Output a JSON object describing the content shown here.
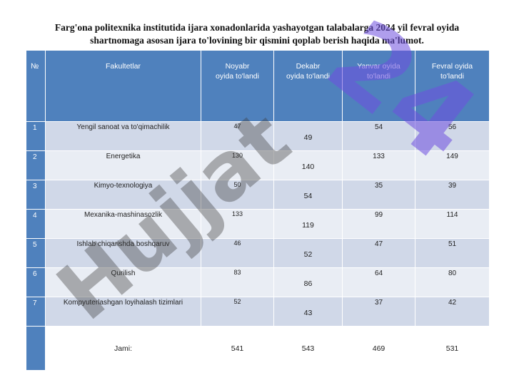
{
  "title": "Farg'ona politexnika institutida ijara xonadonlarida yashayotgan talabalarga 2024 yil fevral oyida shartnomaga asosan ijara to'lovining bir qismini qoplab berish haqida ma'lumot.",
  "headers": {
    "num": "№",
    "faculty": "Fakultetlar",
    "nov_1": "Noyabr",
    "nov_2": "oyida to'landi",
    "dek_1": "Dekabr",
    "dek_2": "oyida to'landi",
    "yan_1": "Yanvar oyida",
    "yan_2": "to'landi",
    "fev_1": "Fevral oyida",
    "fev_2": "to'landi"
  },
  "rows": [
    {
      "n": "1",
      "faculty": "Yengil sanoat va to'qimachilik",
      "nov": "47",
      "dek": "49",
      "yan": "54",
      "fev": "56"
    },
    {
      "n": "2",
      "faculty": "Energetika",
      "nov": "130",
      "dek": "140",
      "yan": "133",
      "fev": "149"
    },
    {
      "n": "3",
      "faculty": "Kimyo-texnologiya",
      "nov": "50",
      "dek": "54",
      "yan": "35",
      "fev": "39"
    },
    {
      "n": "4",
      "faculty": "Mexanika-mashinasozlik",
      "nov": "133",
      "dek": "119",
      "yan": "99",
      "fev": "114"
    },
    {
      "n": "5",
      "faculty": "Ishlab chiqarishda boshqaruv",
      "nov": "46",
      "dek": "52",
      "yan": "47",
      "fev": "51"
    },
    {
      "n": "6",
      "faculty": "Qurilish",
      "nov": "83",
      "dek": "86",
      "yan": "64",
      "fev": "80"
    },
    {
      "n": "7",
      "faculty": "Kompyuterlashgan loyihalash tizimlari",
      "nov": "52",
      "dek": "43",
      "yan": "37",
      "fev": "42"
    }
  ],
  "total": {
    "label": "Jami:",
    "nov": "541",
    "dek": "543",
    "yan": "469",
    "fev": "531"
  },
  "watermark": {
    "word": "Hujjat",
    "number": "24",
    "word_color": "#3d3d3d",
    "number_color": "#6f4fe0"
  }
}
